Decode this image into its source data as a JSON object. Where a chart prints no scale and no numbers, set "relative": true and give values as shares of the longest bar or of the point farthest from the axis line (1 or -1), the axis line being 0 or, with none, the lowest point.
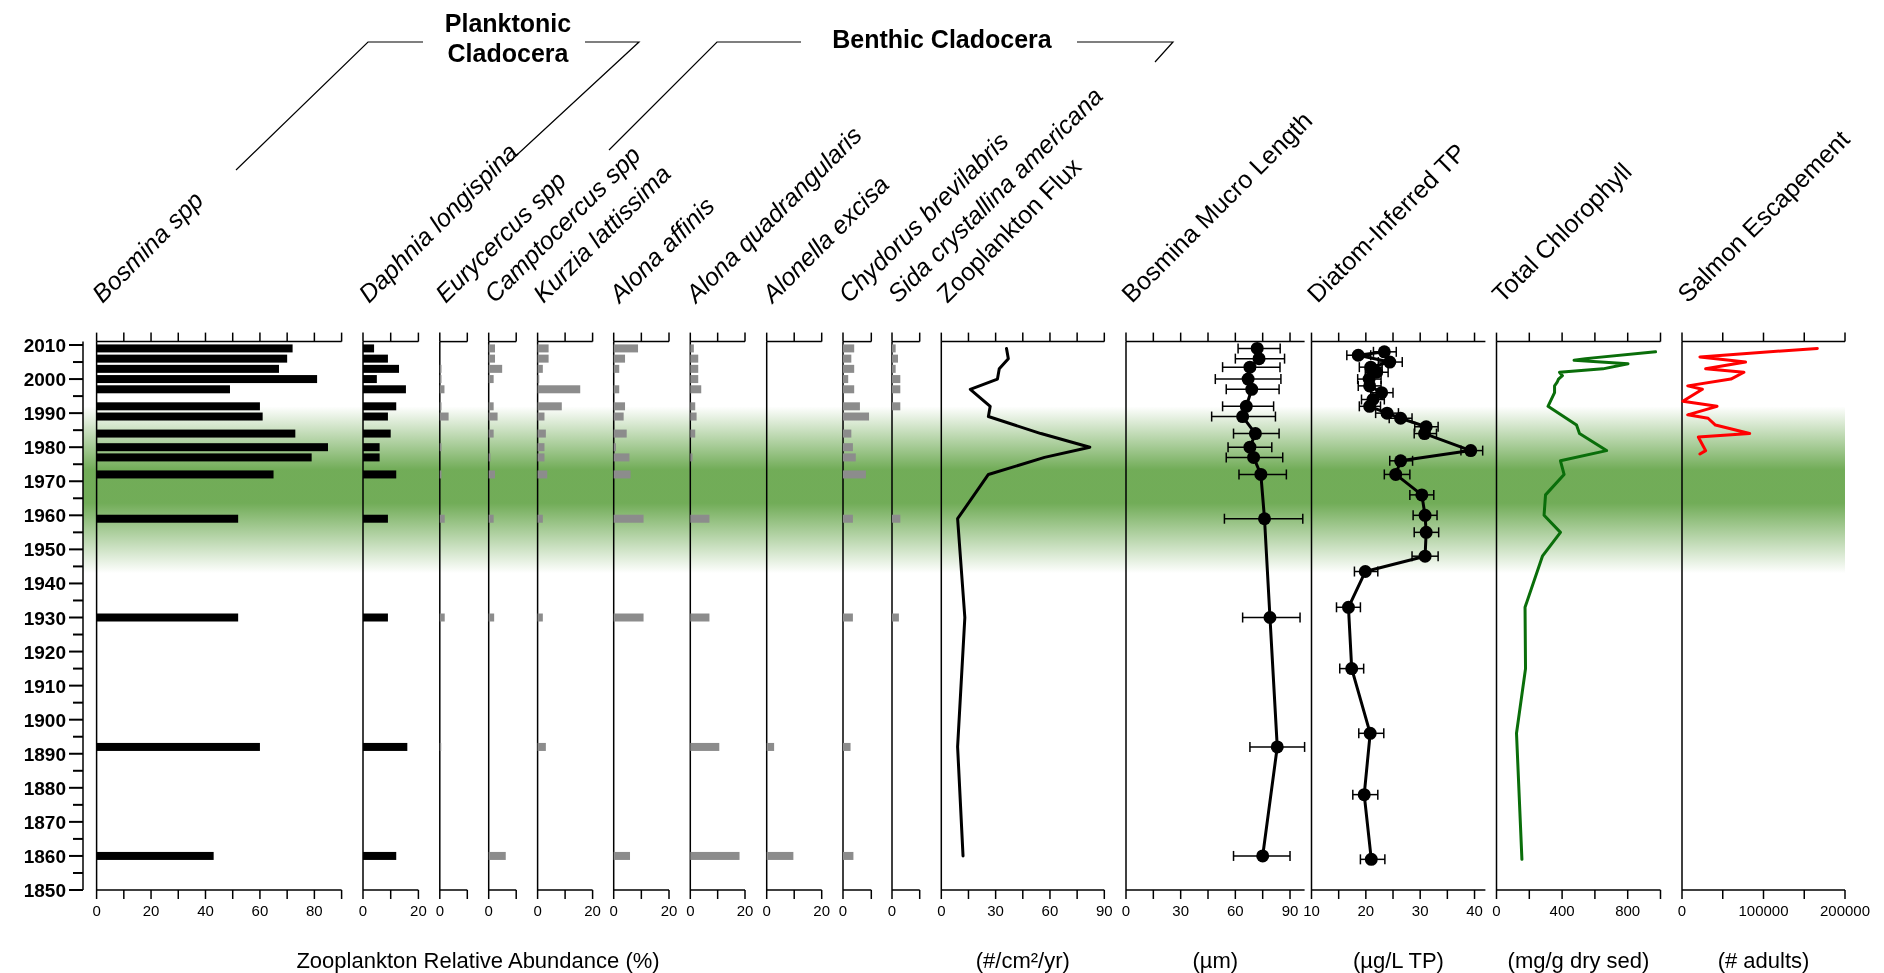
{
  "chart_data": [
    {
      "type": "bar",
      "orientation": "horizontal",
      "title": "Bosmina spp",
      "xlabel": "Zooplankton Relative Abundance (%)",
      "annotations": [
        "Planktonic Cladocera",
        "Benthic Cladocera"
      ],
      "x": [
        2009,
        2006,
        2003,
        2000,
        1997,
        1992,
        1989,
        1984,
        1980,
        1977,
        1972,
        1959,
        1930,
        1892,
        1860
      ],
      "series": [
        {
          "color": "#000000",
          "values": [
            72,
            70,
            67,
            81,
            49,
            60,
            61,
            73,
            85,
            79,
            65,
            52,
            52,
            60,
            43
          ]
        }
      ],
      "xlim": [
        0,
        90
      ],
      "xticks": [
        0,
        {
          "value": 10,
          "label": null
        },
        20,
        {
          "value": 30,
          "label": null
        },
        40,
        {
          "value": 50,
          "label": null
        },
        60,
        {
          "value": 70,
          "label": null
        },
        80,
        {
          "value": 90,
          "label": null
        }
      ],
      "ylim": [
        1850,
        2011
      ],
      "yticks": [
        1850,
        1860,
        1870,
        1880,
        1890,
        1900,
        1910,
        1920,
        1930,
        1940,
        1950,
        1960,
        1970,
        1980,
        1990,
        2000,
        2010
      ],
      "bands": [
        {
          "axis": "y",
          "from": 1943,
          "to": 1992,
          "color": "#6aa84f"
        }
      ]
    },
    {
      "type": "bar",
      "orientation": "horizontal",
      "title": "Daphnia longispina",
      "x": [
        2009,
        2006,
        2003,
        2000,
        1997,
        1992,
        1989,
        1984,
        1980,
        1977,
        1972,
        1959,
        1930,
        1892,
        1860
      ],
      "series": [
        {
          "color": "#000000",
          "values": [
            4,
            9,
            13,
            5,
            15.5,
            12,
            9,
            10,
            6,
            6,
            12,
            9,
            9,
            16,
            12
          ]
        }
      ],
      "xlim": [
        0,
        20
      ],
      "xticks": [
        0,
        {
          "value": 10,
          "label": null
        },
        20
      ],
      "ylim": [
        1850,
        2011
      ],
      "tick_labels": "x",
      "bands": [
        {
          "axis": "y",
          "from": 1943,
          "to": 1992,
          "color": "#6aa84f"
        }
      ]
    },
    {
      "type": "bar",
      "orientation": "horizontal",
      "title": "Eurycercus spp",
      "x": [
        2009,
        2006,
        2003,
        2000,
        1997,
        1992,
        1989,
        1984,
        1980,
        1977,
        1972,
        1959,
        1930,
        1892,
        1860
      ],
      "series": [
        {
          "color": "#8c8c8c",
          "values": [
            0,
            0,
            0.19,
            0.19,
            0.53,
            0.19,
            1,
            0,
            0.19,
            0,
            0.19,
            0.56,
            0.56,
            0.16,
            0
          ]
        }
      ],
      "relative": true,
      "annotations": [
        "0"
      ],
      "ylim": [
        1850,
        2011
      ],
      "tick_labels": "x",
      "bands": [
        {
          "axis": "y",
          "from": 1943,
          "to": 1992,
          "color": "#6aa84f"
        }
      ]
    },
    {
      "type": "bar",
      "orientation": "horizontal",
      "title": "Camptocercus spp",
      "x": [
        2009,
        2006,
        2003,
        2000,
        1997,
        1992,
        1989,
        1984,
        1980,
        1977,
        1972,
        1959,
        1930,
        1892,
        1860
      ],
      "series": [
        {
          "color": "#8c8c8c",
          "values": [
            0.37,
            0.37,
            0.79,
            0.29,
            0,
            0.29,
            0.52,
            0.29,
            0,
            0.1,
            0.37,
            0.29,
            0.32,
            0,
            1
          ]
        }
      ],
      "relative": true,
      "annotations": [
        "0"
      ],
      "ylim": [
        1850,
        2011
      ],
      "tick_labels": "x",
      "bands": [
        {
          "axis": "y",
          "from": 1943,
          "to": 1992,
          "color": "#6aa84f"
        }
      ]
    },
    {
      "type": "bar",
      "orientation": "horizontal",
      "title": "Kurzia lattissima",
      "x": [
        2009,
        2006,
        2003,
        2000,
        1997,
        1992,
        1989,
        1984,
        1980,
        1977,
        1972,
        1959,
        1930,
        1892,
        1860
      ],
      "series": [
        {
          "color": "#8c8c8c",
          "values": [
            4,
            4,
            1.9,
            0.6,
            15.5,
            8.8,
            2.5,
            3,
            2.5,
            2.5,
            3.5,
            1.9,
            1.9,
            3,
            0
          ]
        }
      ],
      "xlim": [
        0,
        20
      ],
      "xticks": [
        0,
        {
          "value": 10,
          "label": null
        },
        20
      ],
      "ylim": [
        1850,
        2011
      ],
      "tick_labels": "x",
      "bands": [
        {
          "axis": "y",
          "from": 1943,
          "to": 1992,
          "color": "#6aa84f"
        }
      ]
    },
    {
      "type": "bar",
      "orientation": "horizontal",
      "title": "Alona affinis",
      "x": [
        2009,
        2006,
        2003,
        2000,
        1997,
        1992,
        1989,
        1984,
        1980,
        1977,
        1972,
        1959,
        1930,
        1892,
        1860
      ],
      "series": [
        {
          "color": "#8c8c8c",
          "values": [
            8.8,
            4.1,
            2,
            0,
            2,
            4.1,
            3.6,
            4.7,
            0.8,
            5.7,
            6.1,
            10.8,
            10.8,
            0,
            5.9
          ]
        }
      ],
      "xlim": [
        0,
        20
      ],
      "xticks": [
        0,
        {
          "value": 10,
          "label": null
        },
        20
      ],
      "ylim": [
        1850,
        2011
      ],
      "tick_labels": "x",
      "bands": [
        {
          "axis": "y",
          "from": 1943,
          "to": 1992,
          "color": "#6aa84f"
        }
      ]
    },
    {
      "type": "bar",
      "orientation": "horizontal",
      "title": "Alona quadrangularis",
      "x": [
        2009,
        2006,
        2003,
        2000,
        1997,
        1992,
        1989,
        1984,
        1980,
        1977,
        1972,
        1959,
        1930,
        1892,
        1860
      ],
      "series": [
        {
          "color": "#8c8c8c",
          "values": [
            1.3,
            2.9,
            2.9,
            2.9,
            4,
            1.8,
            2.3,
            1.8,
            0,
            0.8,
            0,
            7,
            7,
            10.6,
            18
          ]
        }
      ],
      "xlim": [
        0,
        20
      ],
      "xticks": [
        0,
        {
          "value": 10,
          "label": null
        },
        20
      ],
      "ylim": [
        1850,
        2011
      ],
      "tick_labels": "x",
      "bands": [
        {
          "axis": "y",
          "from": 1943,
          "to": 1992,
          "color": "#6aa84f"
        }
      ]
    },
    {
      "type": "bar",
      "orientation": "horizontal",
      "title": "Alonella excisa",
      "x": [
        2009,
        2006,
        2003,
        2000,
        1997,
        1992,
        1989,
        1984,
        1980,
        1977,
        1972,
        1959,
        1930,
        1892,
        1860
      ],
      "series": [
        {
          "color": "#8c8c8c",
          "values": [
            0,
            0,
            0,
            0,
            0,
            0,
            0,
            0,
            0,
            0,
            0,
            0,
            0,
            2.7,
            9.7
          ]
        }
      ],
      "xlim": [
        0,
        20
      ],
      "xticks": [
        0,
        {
          "value": 10,
          "label": null
        },
        20
      ],
      "ylim": [
        1850,
        2011
      ],
      "tick_labels": "x",
      "bands": [
        {
          "axis": "y",
          "from": 1943,
          "to": 1992,
          "color": "#6aa84f"
        }
      ]
    },
    {
      "type": "bar",
      "orientation": "horizontal",
      "title": "Chydorus brevilabris",
      "x": [
        2009,
        2006,
        2003,
        2000,
        1997,
        1992,
        1989,
        1984,
        1980,
        1977,
        1972,
        1959,
        1930,
        1892,
        1860
      ],
      "series": [
        {
          "color": "#8c8c8c",
          "values": [
            0.43,
            0.32,
            0.43,
            0.2,
            0.43,
            0.65,
            1,
            0.32,
            0.38,
            0.49,
            0.88,
            0.38,
            0.38,
            0.29,
            0.4
          ]
        }
      ],
      "relative": true,
      "annotations": [
        "0"
      ],
      "ylim": [
        1850,
        2011
      ],
      "tick_labels": "x",
      "bands": [
        {
          "axis": "y",
          "from": 1943,
          "to": 1992,
          "color": "#6aa84f"
        }
      ]
    },
    {
      "type": "bar",
      "orientation": "horizontal",
      "title": "Sida crystallina americana",
      "x": [
        2009,
        2006,
        2003,
        2000,
        1997,
        1992,
        1989,
        1984,
        1980,
        1977,
        1972,
        1959,
        1930,
        1892,
        1860
      ],
      "series": [
        {
          "color": "#8c8c8c",
          "values": [
            0.44,
            0.72,
            0.44,
            1,
            1,
            1,
            0,
            0,
            0,
            0,
            0,
            1,
            0.83,
            0,
            0
          ]
        }
      ],
      "relative": true,
      "annotations": [
        "0"
      ],
      "ylim": [
        1850,
        2011
      ],
      "tick_labels": "x",
      "bands": [
        {
          "axis": "y",
          "from": 1943,
          "to": 1992,
          "color": "#6aa84f"
        }
      ]
    },
    {
      "type": "line",
      "orientation": "horizontal",
      "title": "Zooplankton Flux",
      "xlabel": "(#/cm²/yr)",
      "x": [
        2009,
        2006,
        2003,
        2000,
        1997,
        1992,
        1989,
        1984,
        1980,
        1977,
        1972,
        1959,
        1930,
        1892,
        1860
      ],
      "series": [
        {
          "color": "#000000",
          "values": [
            36,
            37,
            32,
            31,
            16,
            27,
            26,
            55,
            82,
            57,
            26,
            9,
            13,
            9,
            12
          ]
        }
      ],
      "xlim": [
        0,
        90
      ],
      "xticks": [
        0,
        {
          "value": 15,
          "label": null
        },
        30,
        {
          "value": 45,
          "label": null
        },
        60,
        {
          "value": 75,
          "label": null
        },
        90
      ],
      "ylim": [
        1850,
        2011
      ],
      "tick_labels": "x",
      "bands": [
        {
          "axis": "y",
          "from": 1943,
          "to": 1992,
          "color": "#6aa84f"
        }
      ]
    },
    {
      "type": "line",
      "orientation": "horizontal",
      "title": "Bosmina Mucro Length",
      "xlabel": "(µm)",
      "marker": "circle",
      "x": [
        2009,
        2006,
        2003.5,
        2000,
        1997,
        1992,
        1989,
        1984,
        1980,
        1977,
        1972,
        1959,
        1930,
        1892,
        1860
      ],
      "series": [
        {
          "color": "#000000",
          "values": [
            72,
            73,
            68,
            67,
            69,
            66,
            64,
            71,
            68,
            70,
            74,
            76,
            79,
            83,
            75
          ],
          "errors": [
            [
              61.5,
              84.6
            ],
            [
              60,
              87
            ],
            [
              53,
              84.5
            ],
            [
              49,
              85
            ],
            [
              55,
              84
            ],
            [
              53,
              81
            ],
            [
              47,
              82
            ],
            [
              59,
              84
            ],
            [
              56,
              80
            ],
            [
              55,
              86
            ],
            [
              62,
              88
            ],
            [
              54,
              97
            ],
            [
              64,
              95.5
            ],
            [
              68,
              98
            ],
            [
              59,
              90
            ]
          ]
        }
      ],
      "xlim": [
        0,
        98
      ],
      "xticks": [
        0,
        {
          "value": 15,
          "label": null
        },
        30,
        {
          "value": 45,
          "label": null
        },
        60,
        {
          "value": 75,
          "label": null
        },
        90
      ],
      "ylim": [
        1850,
        2011
      ],
      "tick_labels": "x",
      "bands": [
        {
          "axis": "y",
          "from": 1943,
          "to": 1992,
          "color": "#6aa84f"
        }
      ]
    },
    {
      "type": "line",
      "orientation": "horizontal",
      "title": "Diatom-Inferred TP",
      "xlabel": "(µg/L TP)",
      "marker": "circle",
      "x": [
        2008,
        2007,
        2005,
        2003.5,
        2002,
        2000,
        1998,
        1996,
        1994,
        1992,
        1990,
        1988.5,
        1986,
        1984,
        1979,
        1976,
        1972,
        1966,
        1960,
        1955,
        1948,
        1943.5,
        1933,
        1915,
        1896,
        1878,
        1859
      ],
      "series": [
        {
          "color": "#000000",
          "values": [
            23.4,
            18.6,
            24.4,
            20.9,
            22,
            20.6,
            20.7,
            22.9,
            21.3,
            20.7,
            23.9,
            26.4,
            31.1,
            30.8,
            39.3,
            26.4,
            25.5,
            30.3,
            30.9,
            31.1,
            30.9,
            19.9,
            16.8,
            17.4,
            20.8,
            19.7,
            21
          ],
          "errors": [
            [
              21.4,
              25.6
            ],
            [
              16.5,
              20.9
            ],
            [
              22.3,
              26.7
            ],
            [
              18.8,
              23
            ],
            [
              19.9,
              24.1
            ],
            [
              18.5,
              22.8
            ],
            [
              18.6,
              22.8
            ],
            [
              20.9,
              25
            ],
            [
              19.2,
              23.4
            ],
            [
              18.8,
              22.7
            ],
            [
              21.8,
              26
            ],
            [
              24.3,
              28.5
            ],
            [
              29,
              33.3
            ],
            [
              28.9,
              33
            ],
            [
              37.5,
              41.5
            ],
            [
              24.4,
              28.6
            ],
            [
              23.4,
              28.1
            ],
            [
              28.1,
              32.5
            ],
            [
              28.7,
              33.1
            ],
            [
              28.9,
              33.4
            ],
            [
              28.5,
              33.3
            ],
            [
              17.9,
              22.2
            ],
            [
              14.6,
              19
            ],
            [
              15.2,
              19.6
            ],
            [
              18.7,
              23.3
            ],
            [
              17.6,
              22.2
            ],
            [
              19,
              23.5
            ]
          ]
        }
      ],
      "xlim": [
        10,
        42
      ],
      "xticks": [
        10,
        {
          "value": 15,
          "label": null
        },
        20,
        {
          "value": 25,
          "label": null
        },
        30,
        {
          "value": 35,
          "label": null
        },
        40
      ],
      "ylim": [
        1850,
        2011
      ],
      "tick_labels": "x",
      "bands": [
        {
          "axis": "y",
          "from": 1943,
          "to": 1992,
          "color": "#6aa84f"
        }
      ]
    },
    {
      "type": "line",
      "orientation": "horizontal",
      "title": "Total Chlorophyll",
      "xlabel": "(mg/g dry sed)",
      "x": [
        2008,
        2006,
        2005.5,
        2004.5,
        2003,
        2002,
        2001,
        2000,
        1999,
        1998,
        1996,
        1992,
        1986.5,
        1984,
        1979,
        1976,
        1972,
        1966,
        1960,
        1955,
        1948,
        1933,
        1915,
        1896,
        1859
      ],
      "series": [
        {
          "color": "#0a6e0a",
          "values": [
            970,
            543,
            473,
            802,
            649,
            384,
            402,
            378,
            369,
            354,
            354,
            314,
            488,
            506,
            671,
            390,
            412,
            299,
            290,
            390,
            280,
            174,
            177,
            122,
            155
          ]
        }
      ],
      "xlim": [
        0,
        1000
      ],
      "xticks": [
        0,
        {
          "value": 200,
          "label": null
        },
        400,
        {
          "value": 600,
          "label": null
        },
        800,
        {
          "value": 1000,
          "label": null
        }
      ],
      "ylim": [
        1850,
        2011
      ],
      "tick_labels": "x",
      "bands": [
        {
          "axis": "y",
          "from": 1943,
          "to": 1992,
          "color": "#6aa84f"
        }
      ]
    },
    {
      "type": "line",
      "orientation": "horizontal",
      "title": "Salmon Escapement",
      "xlabel": "(# adults)",
      "x": [
        2009,
        2006.5,
        2005,
        2003,
        2002,
        2000,
        1998,
        1997,
        1993.5,
        1992,
        1989.5,
        1988.5,
        1986.5,
        1984,
        1983,
        1979,
        1978
      ],
      "series": [
        {
          "color": "#ff0000",
          "values": [
            166000,
            22000,
            78000,
            29000,
            76000,
            60000,
            7000,
            25000,
            1000,
            43000,
            7000,
            32000,
            41000,
            83000,
            20000,
            29000,
            22000
          ]
        }
      ],
      "xlim": [
        0,
        200000
      ],
      "xticks": [
        0,
        {
          "value": 50000,
          "label": null
        },
        100000,
        {
          "value": 150000,
          "label": null
        },
        200000
      ],
      "ylim": [
        1850,
        2011
      ],
      "tick_labels": "x",
      "bands": [
        {
          "axis": "y",
          "from": 1943,
          "to": 1992,
          "color": "#6aa84f"
        }
      ]
    }
  ]
}
